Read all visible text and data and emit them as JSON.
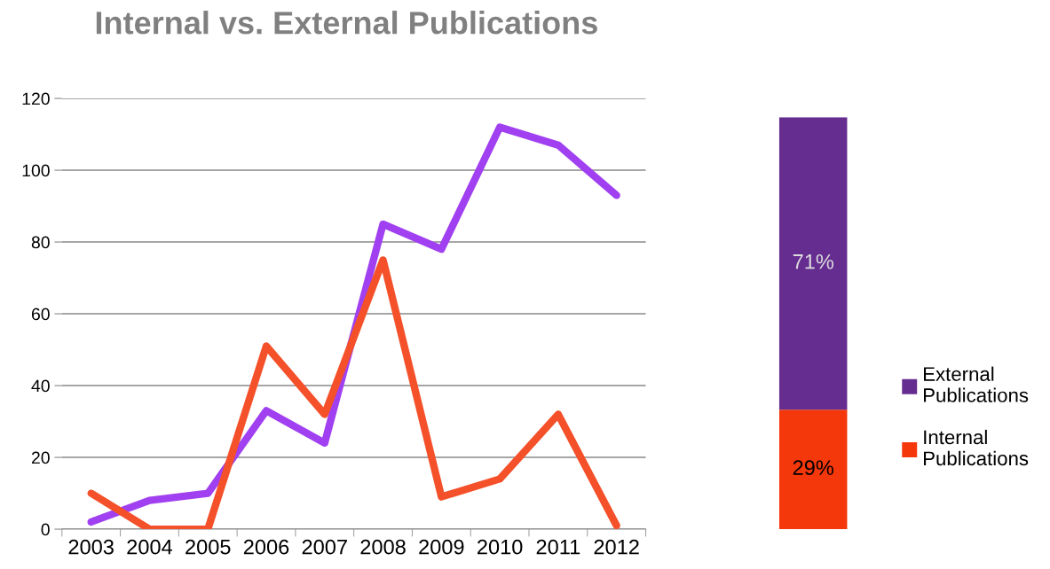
{
  "chart_data": [
    {
      "type": "line",
      "title": "Internal vs. External Publications",
      "categories": [
        "2003",
        "2004",
        "2005",
        "2006",
        "2007",
        "2008",
        "2009",
        "2010",
        "2011",
        "2012"
      ],
      "series": [
        {
          "color": "#a040f0",
          "values": [
            2,
            8,
            10,
            33,
            24,
            85,
            78,
            112,
            107,
            93
          ]
        },
        {
          "color": "#f4502a",
          "values": [
            10,
            0,
            0,
            51,
            32,
            75,
            9,
            14,
            32,
            1
          ]
        }
      ],
      "ylim": [
        0,
        120
      ],
      "yticks": [
        0,
        20,
        40,
        60,
        80,
        100,
        120
      ],
      "grid": "y",
      "marker": "none",
      "line_style": "solid"
    },
    {
      "type": "bar",
      "stacked": true,
      "categories": [
        null
      ],
      "series": [
        {
          "name": "Internal Publications",
          "color": "#f5380c",
          "values": [
            29
          ],
          "value_labels": [
            "29%"
          ]
        },
        {
          "name": "External Publications",
          "color": "#662d91",
          "values": [
            71
          ],
          "value_labels": [
            "71%"
          ]
        }
      ],
      "legend": "right"
    }
  ]
}
